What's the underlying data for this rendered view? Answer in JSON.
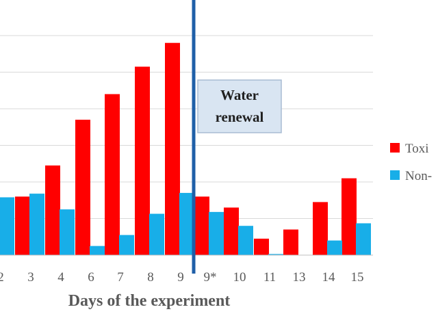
{
  "chart_data": {
    "type": "bar",
    "title": "",
    "xlabel": "Days of the experiment",
    "ylabel": "",
    "ylim": [
      0,
      6
    ],
    "grid": true,
    "legend_position": "right (clipped)",
    "categories": [
      "2",
      "3",
      "4",
      "6",
      "7",
      "8",
      "9",
      "9*",
      "10",
      "11",
      "13",
      "14",
      "15"
    ],
    "series": [
      {
        "name": "Toxi",
        "color": "#ff0000",
        "values": [
          null,
          1.6,
          2.45,
          3.7,
          4.4,
          5.15,
          5.8,
          1.6,
          1.3,
          0.45,
          0.7,
          1.45,
          2.1
        ]
      },
      {
        "name": "Non-",
        "color": "#18aee8",
        "values": [
          1.58,
          1.68,
          1.25,
          0.25,
          0.55,
          1.13,
          1.7,
          1.18,
          0.8,
          0.03,
          null,
          0.4,
          0.87
        ]
      }
    ],
    "annotations": [
      {
        "label": "Water renewal",
        "lines": [
          "Water",
          "renewal"
        ],
        "anchor": "between 9 and 9*"
      }
    ]
  },
  "colors": {
    "divider": "#1f5fa8",
    "annotation_fill": "#d9e5f2",
    "annotation_border": "#a8bcd3",
    "grid": "#d9d9d9",
    "text": "#595959"
  }
}
